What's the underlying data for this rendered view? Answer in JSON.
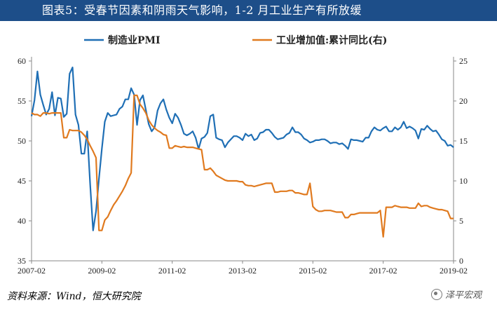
{
  "title": "图表5：受春节因素和阴雨天气影响，1-2 月工业生产有所放缓",
  "source": "资料来源：Wind，恒大研究院",
  "watermark": "泽平宏观",
  "chart_data": {
    "type": "line",
    "x_ticks": [
      "2007-02",
      "2009-02",
      "2011-02",
      "2013-02",
      "2015-02",
      "2017-02",
      "2019-02"
    ],
    "x_range": [
      "2007-02",
      "2019-02"
    ],
    "y_left": {
      "min": 35,
      "max": 60,
      "ticks": [
        35,
        40,
        45,
        50,
        55,
        60
      ]
    },
    "y_right": {
      "min": 0,
      "max": 25,
      "ticks": [
        0,
        5,
        10,
        15,
        20,
        25
      ]
    },
    "legend_position": "top",
    "series": [
      {
        "name": "制造业PMI",
        "axis": "left",
        "color": "#1f6fb5",
        "points": [
          [
            "2007-02",
            53.1
          ],
          [
            "2007-03",
            55.1
          ],
          [
            "2007-04",
            58.7
          ],
          [
            "2007-05",
            55.8
          ],
          [
            "2007-06",
            54.5
          ],
          [
            "2007-07",
            53.3
          ],
          [
            "2007-08",
            54.0
          ],
          [
            "2007-09",
            56.1
          ],
          [
            "2007-10",
            53.2
          ],
          [
            "2007-11",
            55.4
          ],
          [
            "2007-12",
            55.3
          ],
          [
            "2008-01",
            53.0
          ],
          [
            "2008-02",
            53.4
          ],
          [
            "2008-03",
            58.4
          ],
          [
            "2008-04",
            59.2
          ],
          [
            "2008-05",
            53.3
          ],
          [
            "2008-06",
            52.0
          ],
          [
            "2008-07",
            48.4
          ],
          [
            "2008-08",
            48.4
          ],
          [
            "2008-09",
            51.2
          ],
          [
            "2008-10",
            44.6
          ],
          [
            "2008-11",
            38.8
          ],
          [
            "2008-12",
            41.2
          ],
          [
            "2009-01",
            45.3
          ],
          [
            "2009-02",
            49.0
          ],
          [
            "2009-03",
            52.4
          ],
          [
            "2009-04",
            53.5
          ],
          [
            "2009-05",
            53.1
          ],
          [
            "2009-06",
            53.2
          ],
          [
            "2009-07",
            53.3
          ],
          [
            "2009-08",
            54.0
          ],
          [
            "2009-09",
            54.3
          ],
          [
            "2009-10",
            55.2
          ],
          [
            "2009-11",
            55.2
          ],
          [
            "2009-12",
            56.6
          ],
          [
            "2010-01",
            55.8
          ],
          [
            "2010-02",
            52.0
          ],
          [
            "2010-03",
            55.1
          ],
          [
            "2010-04",
            55.7
          ],
          [
            "2010-05",
            53.9
          ],
          [
            "2010-06",
            52.1
          ],
          [
            "2010-07",
            51.2
          ],
          [
            "2010-08",
            51.7
          ],
          [
            "2010-09",
            53.8
          ],
          [
            "2010-10",
            54.7
          ],
          [
            "2010-11",
            55.2
          ],
          [
            "2010-12",
            53.9
          ],
          [
            "2011-01",
            52.9
          ],
          [
            "2011-02",
            52.2
          ],
          [
            "2011-03",
            53.4
          ],
          [
            "2011-04",
            52.9
          ],
          [
            "2011-05",
            52.0
          ],
          [
            "2011-06",
            50.9
          ],
          [
            "2011-07",
            50.7
          ],
          [
            "2011-08",
            50.9
          ],
          [
            "2011-09",
            51.2
          ],
          [
            "2011-10",
            50.4
          ],
          [
            "2011-11",
            49.0
          ],
          [
            "2011-12",
            50.3
          ],
          [
            "2012-01",
            50.5
          ],
          [
            "2012-02",
            51.0
          ],
          [
            "2012-03",
            53.1
          ],
          [
            "2012-04",
            53.3
          ],
          [
            "2012-05",
            50.4
          ],
          [
            "2012-06",
            50.2
          ],
          [
            "2012-07",
            50.1
          ],
          [
            "2012-08",
            49.2
          ],
          [
            "2012-09",
            49.8
          ],
          [
            "2012-10",
            50.2
          ],
          [
            "2012-11",
            50.6
          ],
          [
            "2012-12",
            50.6
          ],
          [
            "2013-01",
            50.4
          ],
          [
            "2013-02",
            50.1
          ],
          [
            "2013-03",
            50.9
          ],
          [
            "2013-04",
            50.6
          ],
          [
            "2013-05",
            50.8
          ],
          [
            "2013-06",
            50.1
          ],
          [
            "2013-07",
            50.3
          ],
          [
            "2013-08",
            51.0
          ],
          [
            "2013-09",
            51.1
          ],
          [
            "2013-10",
            51.4
          ],
          [
            "2013-11",
            51.4
          ],
          [
            "2013-12",
            51.0
          ],
          [
            "2014-01",
            50.5
          ],
          [
            "2014-02",
            50.2
          ],
          [
            "2014-03",
            50.3
          ],
          [
            "2014-04",
            50.4
          ],
          [
            "2014-05",
            50.8
          ],
          [
            "2014-06",
            51.0
          ],
          [
            "2014-07",
            51.7
          ],
          [
            "2014-08",
            51.1
          ],
          [
            "2014-09",
            51.1
          ],
          [
            "2014-10",
            50.8
          ],
          [
            "2014-11",
            50.3
          ],
          [
            "2014-12",
            50.1
          ],
          [
            "2015-01",
            49.8
          ],
          [
            "2015-02",
            49.9
          ],
          [
            "2015-03",
            50.1
          ],
          [
            "2015-04",
            50.1
          ],
          [
            "2015-05",
            50.2
          ],
          [
            "2015-06",
            50.2
          ],
          [
            "2015-07",
            50.0
          ],
          [
            "2015-08",
            49.7
          ],
          [
            "2015-09",
            49.8
          ],
          [
            "2015-10",
            49.8
          ],
          [
            "2015-11",
            49.6
          ],
          [
            "2015-12",
            49.7
          ],
          [
            "2016-01",
            49.4
          ],
          [
            "2016-02",
            49.0
          ],
          [
            "2016-03",
            50.2
          ],
          [
            "2016-04",
            50.1
          ],
          [
            "2016-05",
            50.1
          ],
          [
            "2016-06",
            50.0
          ],
          [
            "2016-07",
            49.9
          ],
          [
            "2016-08",
            50.4
          ],
          [
            "2016-09",
            50.4
          ],
          [
            "2016-10",
            51.2
          ],
          [
            "2016-11",
            51.7
          ],
          [
            "2016-12",
            51.4
          ],
          [
            "2017-01",
            51.3
          ],
          [
            "2017-02",
            51.6
          ],
          [
            "2017-03",
            51.8
          ],
          [
            "2017-04",
            51.2
          ],
          [
            "2017-05",
            51.2
          ],
          [
            "2017-06",
            51.7
          ],
          [
            "2017-07",
            51.4
          ],
          [
            "2017-08",
            51.7
          ],
          [
            "2017-09",
            52.4
          ],
          [
            "2017-10",
            51.6
          ],
          [
            "2017-11",
            51.8
          ],
          [
            "2017-12",
            51.6
          ],
          [
            "2018-01",
            51.3
          ],
          [
            "2018-02",
            50.3
          ],
          [
            "2018-03",
            51.5
          ],
          [
            "2018-04",
            51.4
          ],
          [
            "2018-05",
            51.9
          ],
          [
            "2018-06",
            51.5
          ],
          [
            "2018-07",
            51.2
          ],
          [
            "2018-08",
            51.3
          ],
          [
            "2018-09",
            50.8
          ],
          [
            "2018-10",
            50.2
          ],
          [
            "2018-11",
            50.0
          ],
          [
            "2018-12",
            49.4
          ],
          [
            "2019-01",
            49.5
          ],
          [
            "2019-02",
            49.2
          ]
        ]
      },
      {
        "name": "工业增加值:累计同比(右)",
        "axis": "right",
        "color": "#e07a1f",
        "points": [
          [
            "2007-02",
            18.5
          ],
          [
            "2007-03",
            18.3
          ],
          [
            "2007-04",
            18.3
          ],
          [
            "2007-05",
            18.1
          ],
          [
            "2007-06",
            18.5
          ],
          [
            "2007-07",
            18.5
          ],
          [
            "2007-08",
            18.4
          ],
          [
            "2007-09",
            18.5
          ],
          [
            "2007-10",
            18.5
          ],
          [
            "2007-11",
            18.5
          ],
          [
            "2007-12",
            18.5
          ],
          [
            "2008-01",
            15.4
          ],
          [
            "2008-02",
            15.4
          ],
          [
            "2008-03",
            16.4
          ],
          [
            "2008-04",
            16.3
          ],
          [
            "2008-05",
            16.3
          ],
          [
            "2008-06",
            16.3
          ],
          [
            "2008-07",
            16.1
          ],
          [
            "2008-08",
            15.7
          ],
          [
            "2008-09",
            15.2
          ],
          [
            "2008-10",
            14.4
          ],
          [
            "2008-11",
            13.7
          ],
          [
            "2008-12",
            12.9
          ],
          [
            "2009-01",
            3.8
          ],
          [
            "2009-02",
            3.8
          ],
          [
            "2009-03",
            5.1
          ],
          [
            "2009-04",
            5.5
          ],
          [
            "2009-05",
            6.3
          ],
          [
            "2009-06",
            7.0
          ],
          [
            "2009-07",
            7.5
          ],
          [
            "2009-08",
            8.1
          ],
          [
            "2009-09",
            8.7
          ],
          [
            "2009-10",
            9.4
          ],
          [
            "2009-11",
            10.3
          ],
          [
            "2009-12",
            11.0
          ],
          [
            "2010-01",
            20.7
          ],
          [
            "2010-02",
            20.7
          ],
          [
            "2010-03",
            19.6
          ],
          [
            "2010-04",
            19.1
          ],
          [
            "2010-05",
            18.5
          ],
          [
            "2010-06",
            17.6
          ],
          [
            "2010-07",
            17.0
          ],
          [
            "2010-08",
            16.6
          ],
          [
            "2010-09",
            16.3
          ],
          [
            "2010-10",
            16.1
          ],
          [
            "2010-11",
            15.8
          ],
          [
            "2010-12",
            15.7
          ],
          [
            "2011-01",
            14.1
          ],
          [
            "2011-02",
            14.1
          ],
          [
            "2011-03",
            14.4
          ],
          [
            "2011-04",
            14.3
          ],
          [
            "2011-05",
            14.2
          ],
          [
            "2011-06",
            14.3
          ],
          [
            "2011-07",
            14.2
          ],
          [
            "2011-08",
            14.2
          ],
          [
            "2011-09",
            14.2
          ],
          [
            "2011-10",
            14.1
          ],
          [
            "2011-11",
            14.0
          ],
          [
            "2011-12",
            13.9
          ],
          [
            "2012-01",
            11.4
          ],
          [
            "2012-02",
            11.4
          ],
          [
            "2012-03",
            11.6
          ],
          [
            "2012-04",
            11.2
          ],
          [
            "2012-05",
            10.7
          ],
          [
            "2012-06",
            10.5
          ],
          [
            "2012-07",
            10.3
          ],
          [
            "2012-08",
            10.1
          ],
          [
            "2012-09",
            10.0
          ],
          [
            "2012-10",
            10.0
          ],
          [
            "2012-11",
            10.0
          ],
          [
            "2012-12",
            10.0
          ],
          [
            "2013-01",
            9.9
          ],
          [
            "2013-02",
            9.9
          ],
          [
            "2013-03",
            9.5
          ],
          [
            "2013-04",
            9.4
          ],
          [
            "2013-05",
            9.4
          ],
          [
            "2013-06",
            9.3
          ],
          [
            "2013-07",
            9.4
          ],
          [
            "2013-08",
            9.5
          ],
          [
            "2013-09",
            9.6
          ],
          [
            "2013-10",
            9.7
          ],
          [
            "2013-11",
            9.7
          ],
          [
            "2013-12",
            9.7
          ],
          [
            "2014-01",
            8.6
          ],
          [
            "2014-02",
            8.6
          ],
          [
            "2014-03",
            8.7
          ],
          [
            "2014-04",
            8.7
          ],
          [
            "2014-05",
            8.7
          ],
          [
            "2014-06",
            8.8
          ],
          [
            "2014-07",
            8.8
          ],
          [
            "2014-08",
            8.5
          ],
          [
            "2014-09",
            8.5
          ],
          [
            "2014-10",
            8.4
          ],
          [
            "2014-11",
            8.3
          ],
          [
            "2014-12",
            8.3
          ],
          [
            "2015-01",
            9.7
          ],
          [
            "2015-02",
            6.8
          ],
          [
            "2015-03",
            6.4
          ],
          [
            "2015-04",
            6.2
          ],
          [
            "2015-05",
            6.2
          ],
          [
            "2015-06",
            6.3
          ],
          [
            "2015-07",
            6.3
          ],
          [
            "2015-08",
            6.3
          ],
          [
            "2015-09",
            6.2
          ],
          [
            "2015-10",
            6.1
          ],
          [
            "2015-11",
            6.1
          ],
          [
            "2015-12",
            6.1
          ],
          [
            "2016-01",
            5.4
          ],
          [
            "2016-02",
            5.4
          ],
          [
            "2016-03",
            5.8
          ],
          [
            "2016-04",
            5.8
          ],
          [
            "2016-05",
            5.9
          ],
          [
            "2016-06",
            6.0
          ],
          [
            "2016-07",
            6.0
          ],
          [
            "2016-08",
            6.0
          ],
          [
            "2016-09",
            6.0
          ],
          [
            "2016-10",
            6.0
          ],
          [
            "2016-11",
            6.0
          ],
          [
            "2016-12",
            6.0
          ],
          [
            "2017-01",
            6.3
          ],
          [
            "2017-02",
            3.0
          ],
          [
            "2017-03",
            6.7
          ],
          [
            "2017-04",
            6.7
          ],
          [
            "2017-05",
            6.7
          ],
          [
            "2017-06",
            6.9
          ],
          [
            "2017-07",
            6.8
          ],
          [
            "2017-08",
            6.7
          ],
          [
            "2017-09",
            6.7
          ],
          [
            "2017-10",
            6.7
          ],
          [
            "2017-11",
            6.6
          ],
          [
            "2017-12",
            6.6
          ],
          [
            "2018-01",
            6.6
          ],
          [
            "2018-02",
            7.2
          ],
          [
            "2018-03",
            6.8
          ],
          [
            "2018-04",
            6.9
          ],
          [
            "2018-05",
            6.9
          ],
          [
            "2018-06",
            6.7
          ],
          [
            "2018-07",
            6.6
          ],
          [
            "2018-08",
            6.5
          ],
          [
            "2018-09",
            6.4
          ],
          [
            "2018-10",
            6.4
          ],
          [
            "2018-11",
            6.3
          ],
          [
            "2018-12",
            6.2
          ],
          [
            "2019-01",
            5.3
          ],
          [
            "2019-02",
            5.3
          ]
        ]
      }
    ]
  }
}
